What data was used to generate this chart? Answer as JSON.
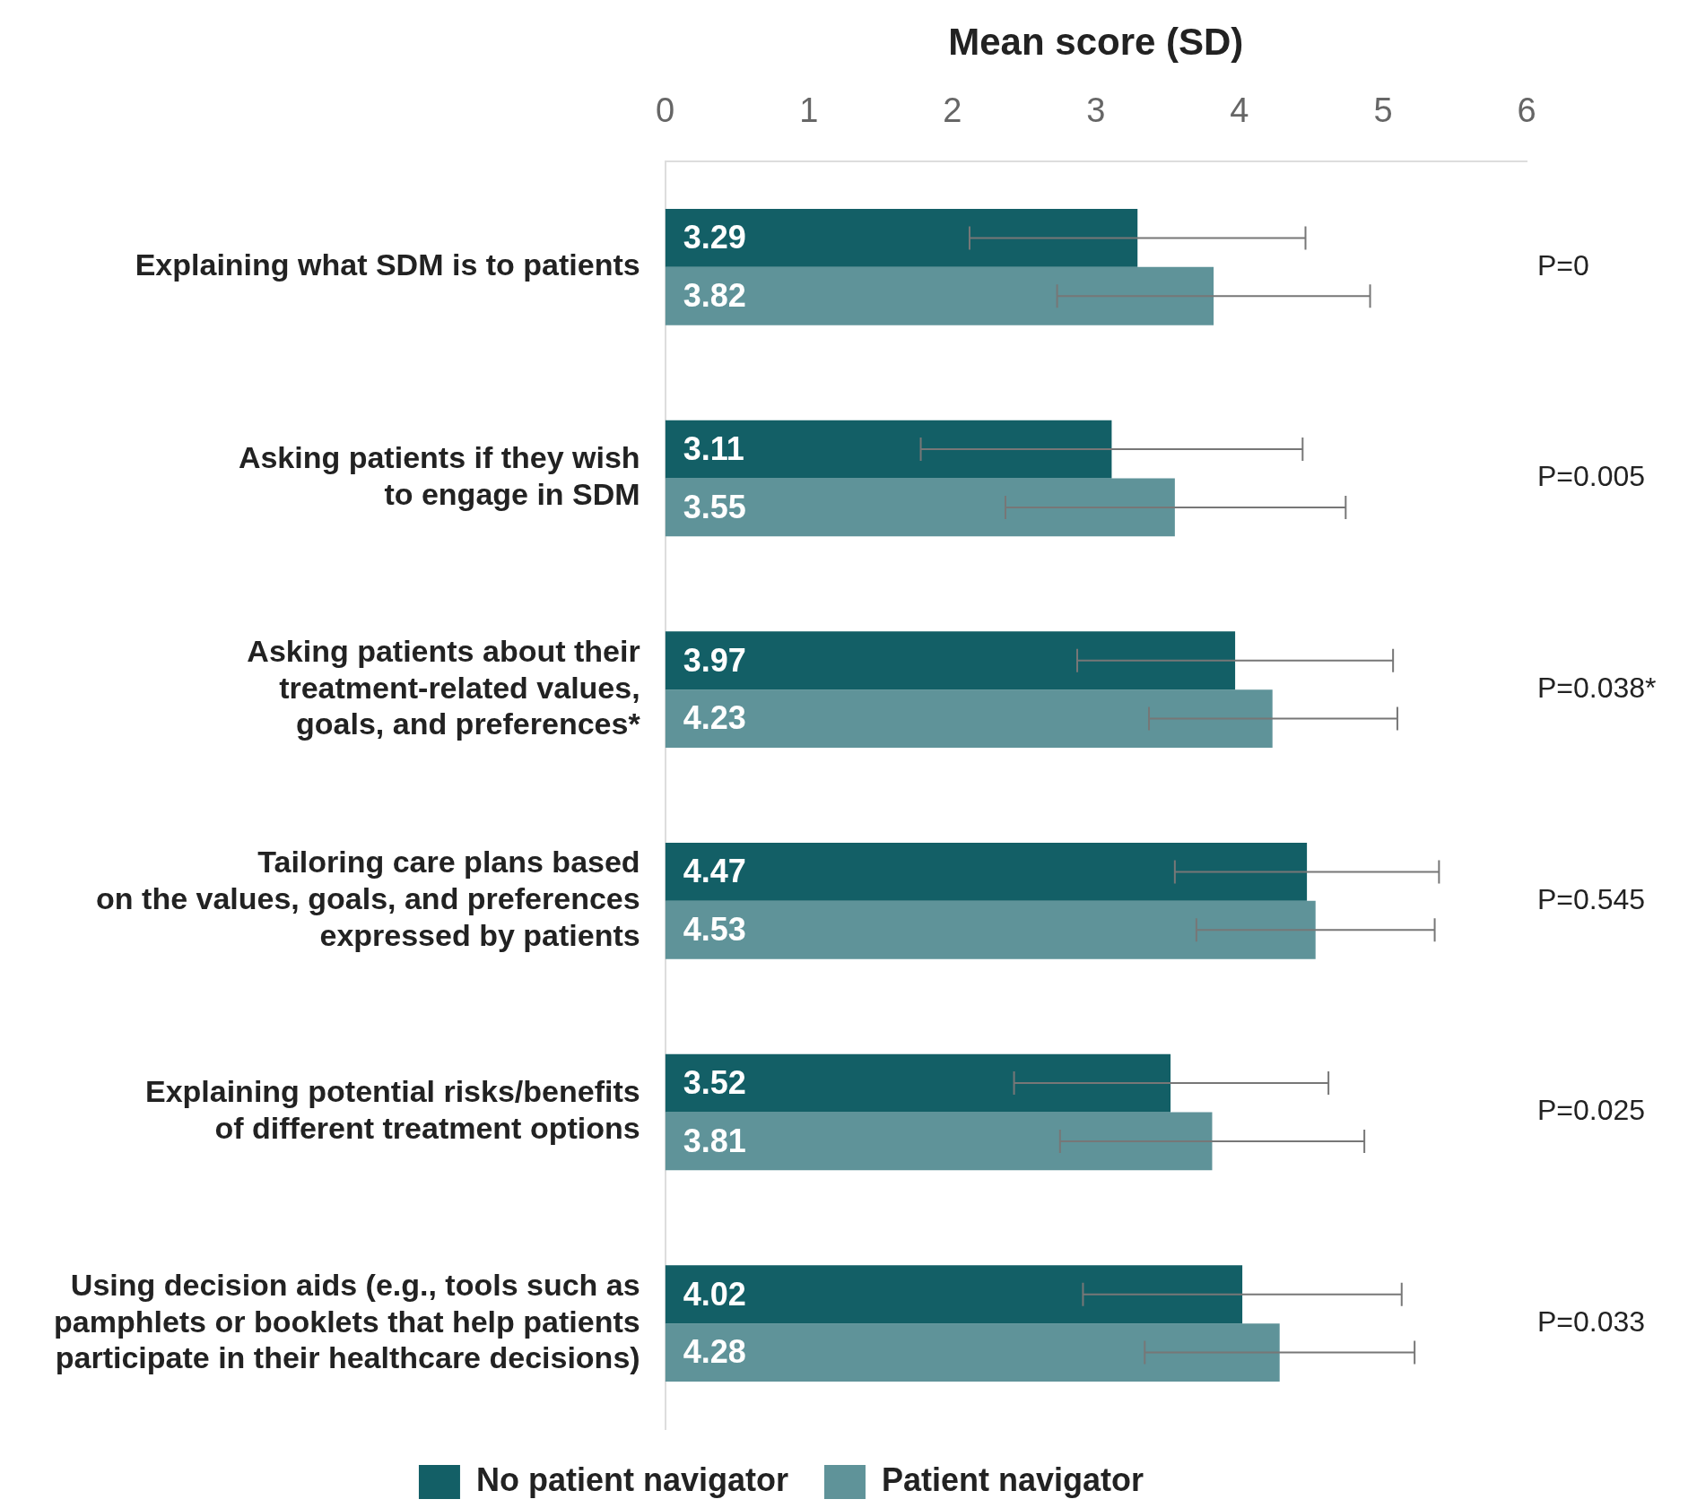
{
  "chart_data": {
    "type": "bar",
    "orientation": "horizontal",
    "xlabel": "Mean score (SD)",
    "categories": [
      "Explaining what SDM is to patients",
      "Asking patients if they wish\nto engage in SDM",
      "Asking patients about their\ntreatment-related values,\ngoals, and preferences*",
      "Tailoring care plans based\non the values, goals, and preferences\nexpressed by patients",
      "Explaining potential risks/benefits\nof different treatment options",
      "Using decision aids (e.g., tools such as\npamphlets or booklets that help patients\nparticipate in their healthcare decisions)"
    ],
    "series": [
      {
        "name": "No patient navigator",
        "color": "#135f66",
        "values": [
          3.29,
          3.11,
          3.97,
          4.47,
          3.52,
          4.02
        ],
        "errors": [
          [
            2.12,
            4.46
          ],
          [
            1.78,
            4.44
          ],
          [
            2.87,
            5.07
          ],
          [
            3.55,
            5.39
          ],
          [
            2.43,
            4.62
          ],
          [
            2.91,
            5.13
          ]
        ]
      },
      {
        "name": "Patient navigator",
        "color": "#5f9399",
        "values": [
          3.82,
          3.55,
          4.23,
          4.53,
          3.81,
          4.28
        ],
        "errors": [
          [
            2.73,
            4.91
          ],
          [
            2.37,
            4.74
          ],
          [
            3.37,
            5.1
          ],
          [
            3.7,
            5.36
          ],
          [
            2.75,
            4.87
          ],
          [
            3.34,
            5.22
          ]
        ]
      }
    ],
    "xlim": [
      0,
      6
    ],
    "xticks": [
      0,
      1,
      2,
      3,
      4,
      5,
      6
    ],
    "grid": false,
    "legend": "bottom",
    "data_labels": true,
    "annotations": [
      "P=0",
      "P=0.005",
      "P=0.038*",
      "P=0.545",
      "P=0.025",
      "P=0.033"
    ]
  }
}
